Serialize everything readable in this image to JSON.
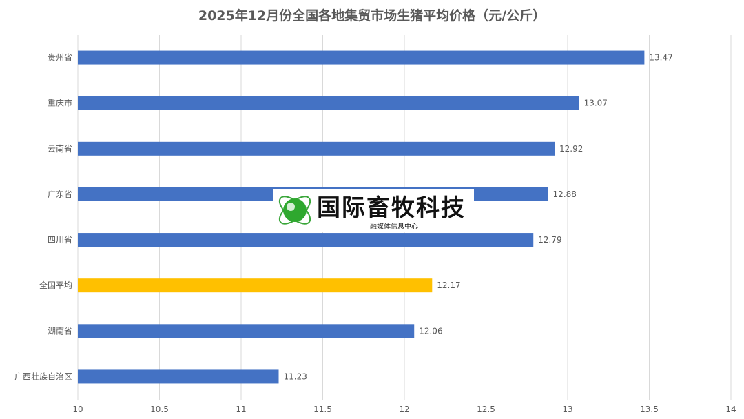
{
  "chart_data": {
    "type": "bar",
    "orientation": "horizontal",
    "title": "2025年12月份全国各地集贸市场生猪平均价格（元/公斤）",
    "categories": [
      "贵州省",
      "重庆市",
      "云南省",
      "广东省",
      "四川省",
      "全国平均",
      "湖南省",
      "广西壮族自治区"
    ],
    "values": [
      13.47,
      13.07,
      12.92,
      12.88,
      12.79,
      12.17,
      12.06,
      11.23
    ],
    "data_labels": [
      "13.47",
      "13.07",
      "12.92",
      "12.88",
      "12.79",
      "12.17",
      "12.06",
      "11.23"
    ],
    "xlim": [
      10,
      14
    ],
    "xticks": [
      "10",
      "10.5",
      "11",
      "11.5",
      "12",
      "12.5",
      "13",
      "13.5",
      "14"
    ],
    "grid": "vertical",
    "colors": {
      "default": "#4472C4",
      "highlight": "#FFC000"
    },
    "highlight_category": "全国平均"
  },
  "watermark": {
    "name": "国际畜牧科技",
    "subtitle": "融媒体信息中心"
  }
}
